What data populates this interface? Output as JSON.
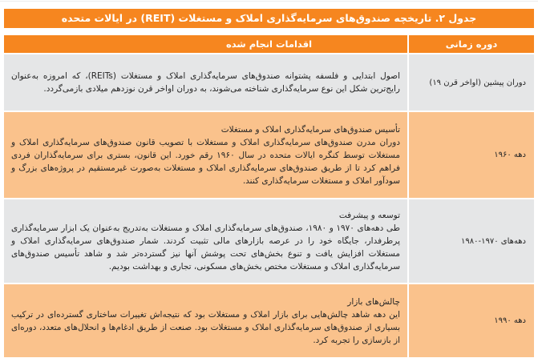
{
  "title": "جدول ۲. تاریخچه صندوق‌های سرمایه‌گذاری املاک و مستغلات (REIT) در ایالات متحده",
  "header": {
    "actions": "اقدامات انجام شده",
    "period": "دوره زمانی"
  },
  "rows": [
    {
      "period": "دوران پیشین (اواخر قرن ۱۹)",
      "title": "",
      "body": "اصول ابتدایی و فلسفه پشتوانه صندوق‌های سرمایه‌گذاری املاک و مستغلات (REITs)، که امروزه به‌عنوان رایج‌ترین شکل این نوع سرمایه‌گذاری شناخته می‌شوند، به دوران اواخر قرن نوزدهم میلادی بازمی‌گردد."
    },
    {
      "period": "دهه ۱۹۶۰",
      "title": "تأسیس صندوق‌های سرمایه‌گذاری املاک و مستغلات",
      "body": "دوران مدرن صندوق‌های سرمایه‌گذاری املاک و مستغلات با تصویب قانون صندوق‌های سرمایه‌گذاری املاک و مستغلات توسط کنگره ایالات متحده در سال ۱۹۶۰ رقم خورد. این قانون، بستری برای سرمایه‌گذاران فردی فراهم کرد تا از طریق صندوق‌های سرمایه‌گذاری املاک و مستغلات به‌صورت غیرمستقیم در پروژه‌های بزرگ و سودآور املاک و مستغلات سرمایه‌گذاری کنند."
    },
    {
      "period": "دهه‌های ۱۹۷۰-۱۹۸۰",
      "title": "توسعه و پیشرفت",
      "body": "طی دهه‌های ۱۹۷۰ و ۱۹۸۰، صندوق‌های سرمایه‌گذاری املاک و مستغلات به‌تدریج به‌عنوان یک ابزار سرمایه‌گذاری پرطرفدار، جایگاه خود را در عرصه بازارهای مالی تثبیت کردند. شمار صندوق‌های سرمایه‌گذاری املاک و مستغلات افزایش یافت و تنوع بخش‌های تحت پوشش آنها نیز گسترده‌تر شد و شاهد تأسیس صندوق‌های سرمایه‌گذاری املاک و مستغلات مختص بخش‌های مسکونی، تجاری و بهداشت بودیم."
    },
    {
      "period": "دهه ۱۹۹۰",
      "title": "چالش‌های بازار",
      "body": "این دهه شاهد چالش‌هایی برای بازار املاک و مستغلات بود که نتیجه‌اش تغییرات ساختاری گسترده‌ای در ترکیب بسیاری از صندوق‌های سرمایه‌گذاری املاک و مستغلات بود. صنعت از طریق ادغام‌ها و انحلال‌های متعدد، دوره‌ای از بازسازی را تجربه کرد."
    }
  ],
  "colors": {
    "header_orange": "#F6861F",
    "row_peach": "#FAC28C",
    "row_gray": "#E5E6E7",
    "text": "#262626",
    "header_text": "#FFFFFF"
  }
}
